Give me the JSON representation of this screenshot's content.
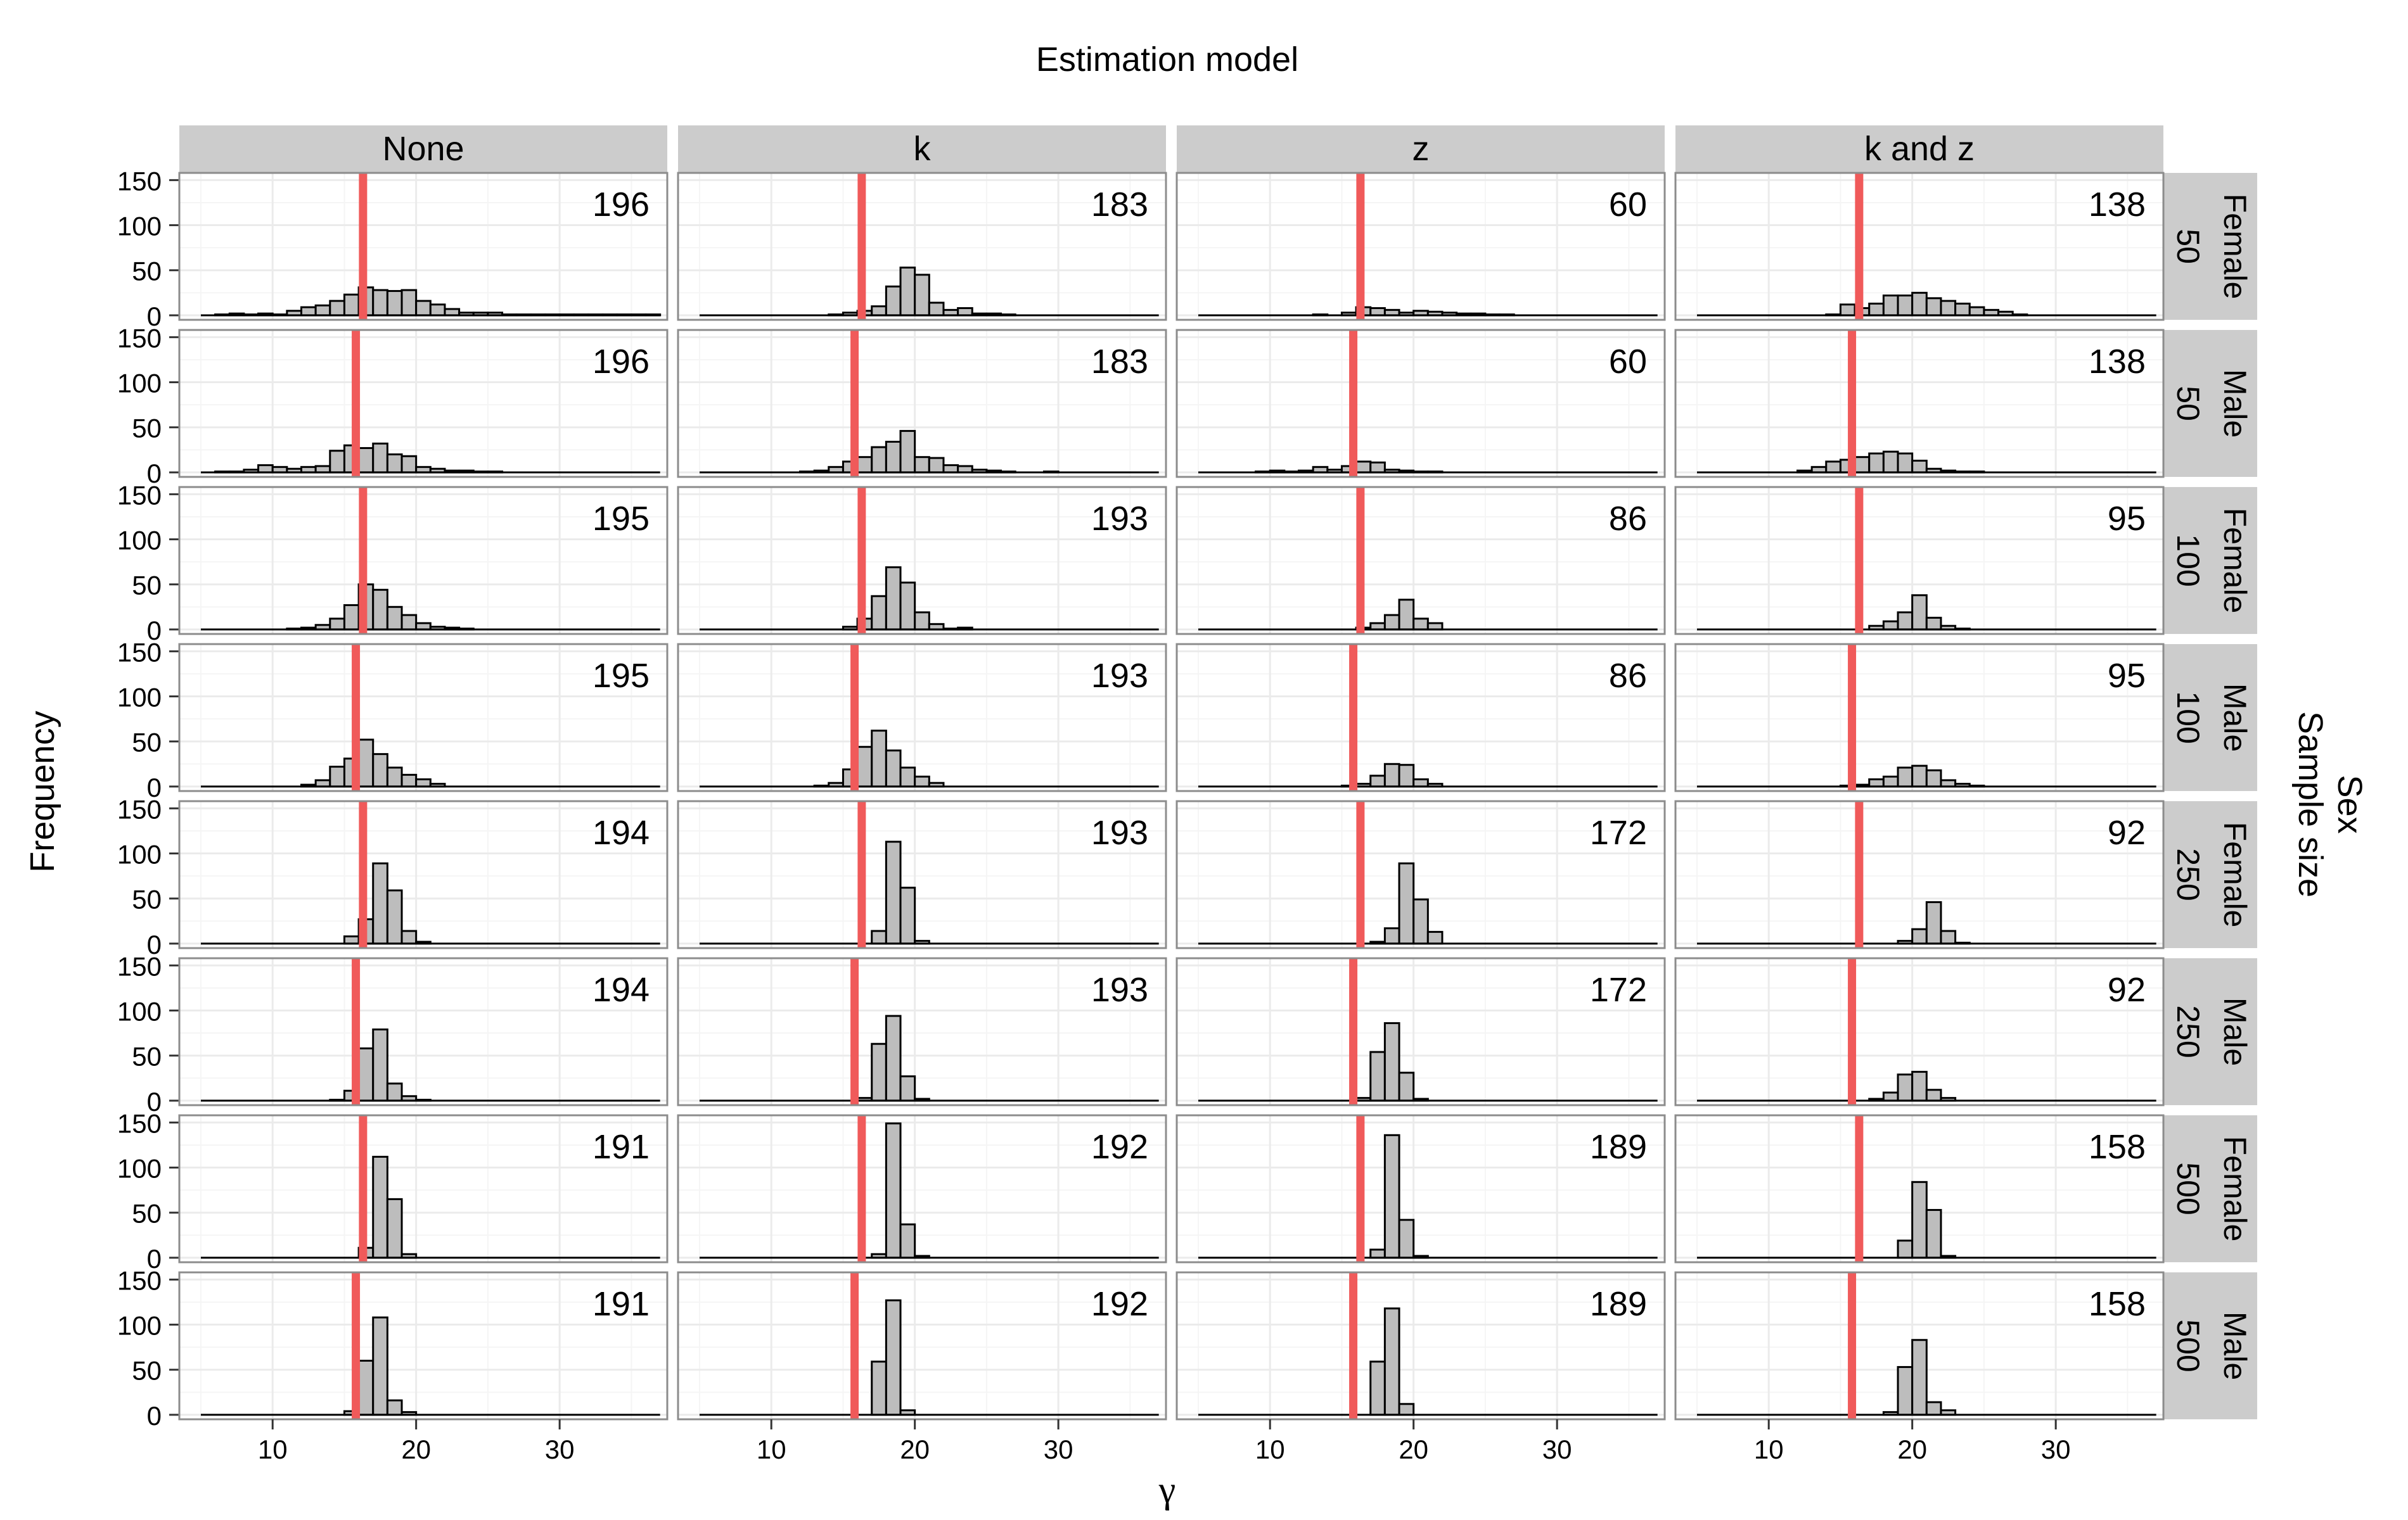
{
  "figure": {
    "top_title": "Estimation model",
    "y_title": "Frequency",
    "x_title": "γ",
    "right_title_1": "Sex",
    "right_title_2": "Sample size"
  },
  "colors": {
    "panel_background": "#ffffff",
    "grid_major": "#ebebeb",
    "grid_minor": "#f5f5f5",
    "strip_fill": "#cccccc",
    "bar_fill": "#bdbdbd",
    "bar_stroke": "#000000",
    "vline": "#f05a5a",
    "panel_border": "#8c8c8c"
  },
  "chart_data": {
    "type": "histogram-facets",
    "title": "Estimation model",
    "xlabel": "γ",
    "ylabel": "Frequency",
    "columns": [
      "None",
      "k",
      "z",
      "k and z"
    ],
    "rows": [
      {
        "size": "50",
        "sex": "Female"
      },
      {
        "size": "50",
        "sex": "Male"
      },
      {
        "size": "100",
        "sex": "Female"
      },
      {
        "size": "100",
        "sex": "Male"
      },
      {
        "size": "250",
        "sex": "Female"
      },
      {
        "size": "250",
        "sex": "Male"
      },
      {
        "size": "500",
        "sex": "Female"
      },
      {
        "size": "500",
        "sex": "Male"
      }
    ],
    "xlim": [
      3.5,
      37.5
    ],
    "ylim": [
      -5,
      158
    ],
    "x_ticks": [
      10,
      20,
      30
    ],
    "y_ticks": [
      0,
      50,
      100,
      150
    ],
    "grid": true,
    "bin_start": 5,
    "bin_width": 1,
    "vline_female": 16.3,
    "vline_male": 15.8,
    "counts": [
      [
        196,
        183,
        60,
        138
      ],
      [
        196,
        183,
        60,
        138
      ],
      [
        195,
        193,
        86,
        95
      ],
      [
        195,
        193,
        86,
        95
      ],
      [
        194,
        193,
        172,
        92
      ],
      [
        194,
        193,
        172,
        92
      ],
      [
        191,
        192,
        189,
        158
      ],
      [
        191,
        192,
        189,
        158
      ]
    ],
    "histograms": [
      [
        [
          0,
          1,
          2,
          1,
          2,
          1,
          5,
          9,
          11,
          16,
          23,
          31,
          28,
          27,
          28,
          16,
          12,
          7,
          3,
          3,
          3,
          1,
          1,
          1,
          1,
          1,
          1,
          1,
          1,
          1,
          1,
          1
        ],
        [
          0,
          0,
          0,
          0,
          0,
          0,
          0,
          0,
          0,
          1,
          3,
          5,
          10,
          32,
          53,
          45,
          14,
          6,
          8,
          2,
          2,
          1,
          0,
          0,
          0,
          0,
          0,
          0,
          0,
          0,
          0,
          0
        ],
        [
          0,
          0,
          0,
          0,
          0,
          0,
          0,
          0,
          1,
          0,
          3,
          9,
          8,
          6,
          3,
          5,
          4,
          3,
          2,
          2,
          1,
          1,
          0,
          0,
          0,
          0,
          0,
          0,
          0,
          0,
          0,
          0
        ],
        [
          0,
          0,
          0,
          0,
          0,
          0,
          0,
          0,
          0,
          1,
          12,
          8,
          13,
          22,
          22,
          25,
          19,
          16,
          13,
          9,
          6,
          4,
          1,
          0,
          0,
          0,
          0,
          0,
          0,
          0,
          0,
          0
        ]
      ],
      [
        [
          0,
          1,
          1,
          3,
          8,
          6,
          4,
          6,
          7,
          24,
          30,
          27,
          32,
          20,
          18,
          6,
          4,
          2,
          2,
          1,
          1,
          0,
          0,
          0,
          0,
          0,
          0,
          0,
          0,
          0,
          0,
          0
        ],
        [
          0,
          0,
          0,
          0,
          0,
          0,
          0,
          1,
          2,
          6,
          12,
          17,
          28,
          34,
          46,
          17,
          16,
          8,
          7,
          3,
          2,
          1,
          0,
          0,
          1,
          0,
          0,
          0,
          0,
          0,
          0,
          0
        ],
        [
          0,
          0,
          0,
          0,
          1,
          2,
          1,
          2,
          6,
          3,
          7,
          12,
          11,
          3,
          2,
          1,
          1,
          0,
          0,
          0,
          0,
          0,
          0,
          0,
          0,
          0,
          0,
          0,
          0,
          0,
          0,
          0
        ],
        [
          0,
          0,
          0,
          0,
          0,
          0,
          0,
          2,
          6,
          12,
          14,
          17,
          21,
          23,
          21,
          13,
          4,
          2,
          1,
          1,
          0,
          0,
          0,
          0,
          0,
          0,
          0,
          0,
          0,
          0,
          0,
          0
        ]
      ],
      [
        [
          0,
          0,
          0,
          0,
          0,
          0,
          1,
          2,
          5,
          12,
          27,
          50,
          44,
          25,
          16,
          7,
          3,
          2,
          1,
          0,
          0,
          0,
          0,
          0,
          0,
          0,
          0,
          0,
          0,
          0,
          0,
          0
        ],
        [
          0,
          0,
          0,
          0,
          0,
          0,
          0,
          0,
          0,
          0,
          3,
          12,
          37,
          69,
          52,
          19,
          6,
          1,
          2,
          0,
          0,
          0,
          0,
          0,
          0,
          0,
          0,
          0,
          0,
          0,
          0,
          0
        ],
        [
          0,
          0,
          0,
          0,
          0,
          0,
          0,
          0,
          0,
          0,
          0,
          2,
          7,
          16,
          33,
          12,
          7,
          0,
          0,
          0,
          0,
          0,
          0,
          0,
          0,
          0,
          0,
          0,
          0,
          0,
          0,
          0
        ],
        [
          0,
          0,
          0,
          0,
          0,
          0,
          0,
          0,
          0,
          0,
          0,
          0,
          4,
          9,
          19,
          38,
          13,
          4,
          1,
          0,
          0,
          0,
          0,
          0,
          0,
          0,
          0,
          0,
          0,
          0,
          0,
          0
        ]
      ],
      [
        [
          0,
          0,
          0,
          0,
          0,
          0,
          0,
          2,
          7,
          22,
          31,
          52,
          36,
          21,
          13,
          8,
          3,
          0,
          0,
          0,
          0,
          0,
          0,
          0,
          0,
          0,
          0,
          0,
          0,
          0,
          0,
          0
        ],
        [
          0,
          0,
          0,
          0,
          0,
          0,
          0,
          0,
          1,
          4,
          19,
          44,
          62,
          40,
          21,
          11,
          4,
          0,
          0,
          0,
          0,
          0,
          0,
          0,
          0,
          0,
          0,
          0,
          0,
          0,
          0,
          0
        ],
        [
          0,
          0,
          0,
          0,
          0,
          0,
          0,
          0,
          0,
          0,
          1,
          3,
          12,
          25,
          24,
          8,
          3,
          0,
          0,
          0,
          0,
          0,
          0,
          0,
          0,
          0,
          0,
          0,
          0,
          0,
          0,
          0
        ],
        [
          0,
          0,
          0,
          0,
          0,
          0,
          0,
          0,
          0,
          0,
          1,
          2,
          8,
          11,
          21,
          23,
          18,
          7,
          3,
          1,
          0,
          0,
          0,
          0,
          0,
          0,
          0,
          0,
          0,
          0,
          0,
          0
        ]
      ],
      [
        [
          0,
          0,
          0,
          0,
          0,
          0,
          0,
          0,
          0,
          0,
          8,
          27,
          89,
          59,
          14,
          2,
          0,
          0,
          0,
          0,
          0,
          0,
          0,
          0,
          0,
          0,
          0,
          0,
          0,
          0,
          0,
          0
        ],
        [
          0,
          0,
          0,
          0,
          0,
          0,
          0,
          0,
          0,
          0,
          0,
          0,
          14,
          113,
          62,
          3,
          0,
          0,
          0,
          0,
          0,
          0,
          0,
          0,
          0,
          0,
          0,
          0,
          0,
          0,
          0,
          0
        ],
        [
          0,
          0,
          0,
          0,
          0,
          0,
          0,
          0,
          0,
          0,
          0,
          0,
          2,
          17,
          89,
          49,
          13,
          0,
          0,
          0,
          0,
          0,
          0,
          0,
          0,
          0,
          0,
          0,
          0,
          0,
          0,
          0
        ],
        [
          0,
          0,
          0,
          0,
          0,
          0,
          0,
          0,
          0,
          0,
          0,
          0,
          0,
          0,
          3,
          16,
          46,
          14,
          1,
          0,
          0,
          0,
          0,
          0,
          0,
          0,
          0,
          0,
          0,
          0,
          0,
          0
        ]
      ],
      [
        [
          0,
          0,
          0,
          0,
          0,
          0,
          0,
          0,
          0,
          1,
          11,
          58,
          79,
          19,
          5,
          1,
          0,
          0,
          0,
          0,
          0,
          0,
          0,
          0,
          0,
          0,
          0,
          0,
          0,
          0,
          0,
          0
        ],
        [
          0,
          0,
          0,
          0,
          0,
          0,
          0,
          0,
          0,
          0,
          0,
          3,
          63,
          94,
          27,
          2,
          0,
          0,
          0,
          0,
          0,
          0,
          0,
          0,
          0,
          0,
          0,
          0,
          0,
          0,
          0,
          0
        ],
        [
          0,
          0,
          0,
          0,
          0,
          0,
          0,
          0,
          0,
          0,
          0,
          3,
          54,
          86,
          31,
          2,
          0,
          0,
          0,
          0,
          0,
          0,
          0,
          0,
          0,
          0,
          0,
          0,
          0,
          0,
          0,
          0
        ],
        [
          0,
          0,
          0,
          0,
          0,
          0,
          0,
          0,
          0,
          0,
          0,
          0,
          2,
          9,
          29,
          32,
          12,
          3,
          0,
          0,
          0,
          0,
          0,
          0,
          0,
          0,
          0,
          0,
          0,
          0,
          0,
          0
        ]
      ],
      [
        [
          0,
          0,
          0,
          0,
          0,
          0,
          0,
          0,
          0,
          0,
          0,
          11,
          112,
          65,
          4,
          0,
          0,
          0,
          0,
          0,
          0,
          0,
          0,
          0,
          0,
          0,
          0,
          0,
          0,
          0,
          0,
          0
        ],
        [
          0,
          0,
          0,
          0,
          0,
          0,
          0,
          0,
          0,
          0,
          0,
          0,
          4,
          149,
          37,
          2,
          0,
          0,
          0,
          0,
          0,
          0,
          0,
          0,
          0,
          0,
          0,
          0,
          0,
          0,
          0,
          0
        ],
        [
          0,
          0,
          0,
          0,
          0,
          0,
          0,
          0,
          0,
          0,
          0,
          0,
          9,
          136,
          42,
          2,
          0,
          0,
          0,
          0,
          0,
          0,
          0,
          0,
          0,
          0,
          0,
          0,
          0,
          0,
          0,
          0
        ],
        [
          0,
          0,
          0,
          0,
          0,
          0,
          0,
          0,
          0,
          0,
          0,
          0,
          0,
          0,
          19,
          84,
          53,
          2,
          0,
          0,
          0,
          0,
          0,
          0,
          0,
          0,
          0,
          0,
          0,
          0,
          0,
          0
        ]
      ],
      [
        [
          0,
          0,
          0,
          0,
          0,
          0,
          0,
          0,
          0,
          0,
          4,
          60,
          108,
          16,
          3,
          0,
          0,
          0,
          0,
          0,
          0,
          0,
          0,
          0,
          0,
          0,
          0,
          0,
          0,
          0,
          0,
          0
        ],
        [
          0,
          0,
          0,
          0,
          0,
          0,
          0,
          0,
          0,
          0,
          0,
          0,
          59,
          127,
          5,
          0,
          0,
          0,
          0,
          0,
          0,
          0,
          0,
          0,
          0,
          0,
          0,
          0,
          0,
          0,
          0,
          0
        ],
        [
          0,
          0,
          0,
          0,
          0,
          0,
          0,
          0,
          0,
          0,
          0,
          0,
          59,
          118,
          12,
          0,
          0,
          0,
          0,
          0,
          0,
          0,
          0,
          0,
          0,
          0,
          0,
          0,
          0,
          0,
          0,
          0
        ],
        [
          0,
          0,
          0,
          0,
          0,
          0,
          0,
          0,
          0,
          0,
          0,
          0,
          0,
          3,
          53,
          83,
          14,
          5,
          0,
          0,
          0,
          0,
          0,
          0,
          0,
          0,
          0,
          0,
          0,
          0,
          0,
          0
        ]
      ]
    ]
  }
}
